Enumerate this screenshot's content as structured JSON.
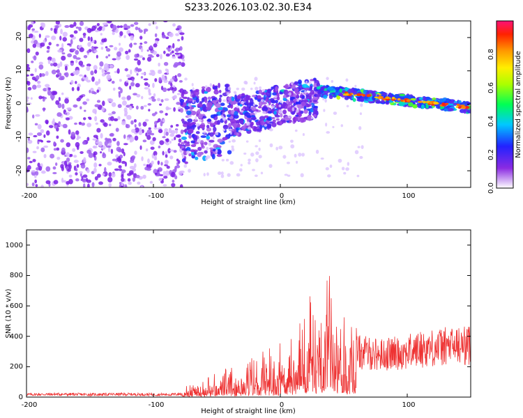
{
  "chart_data": [
    {
      "type": "heatmap",
      "title": "S233.2026.103.02.30.E34",
      "xlabel": "Height of straight line (km)",
      "ylabel": "Frequency (Hz)",
      "xlim": [
        -200,
        150
      ],
      "ylim": [
        -25,
        25
      ],
      "xticks": [
        "-200",
        "-100",
        "0",
        "100"
      ],
      "yticks": [
        "20",
        "10",
        "0",
        "-10",
        "-20"
      ],
      "colorbar": {
        "label": "Normalized spectral amplitude",
        "range": [
          0.0,
          1.0
        ],
        "ticks": [
          "0.0",
          "0.2",
          "0.4",
          "0.6",
          "0.8"
        ]
      },
      "features": [
        {
          "name": "diffuse noise",
          "x_range": [
            -200,
            -78
          ],
          "freq_range": [
            -25,
            25
          ],
          "amplitude": 0.05
        },
        {
          "name": "onset band",
          "x_range": [
            -78,
            30
          ],
          "freq_center": [
            -7,
            2
          ],
          "amplitude": 0.3
        },
        {
          "name": "strong tone",
          "x_range": [
            30,
            150
          ],
          "freq_center": [
            4,
            -1
          ],
          "amplitude": 0.9
        }
      ]
    },
    {
      "type": "line",
      "xlabel": "Height of straight line (km)",
      "ylabel": "SNR (10 * v/v)",
      "xlim": [
        -200,
        150
      ],
      "ylim": [
        0,
        1100
      ],
      "xticks": [
        "-200",
        "-100",
        "0",
        "100"
      ],
      "yticks": [
        "0",
        "200",
        "400",
        "600",
        "800",
        "1000"
      ],
      "series": [
        {
          "name": "SNR",
          "color": "#ee3333",
          "x": [
            -200,
            -175,
            -150,
            -125,
            -100,
            -85,
            -78,
            -70,
            -60,
            -50,
            -40,
            -30,
            -20,
            -10,
            0,
            10,
            20,
            25,
            30,
            35,
            40,
            45,
            50,
            60,
            70,
            80,
            90,
            100,
            110,
            120,
            130,
            140,
            150
          ],
          "values": [
            20,
            22,
            20,
            22,
            20,
            20,
            25,
            60,
            80,
            95,
            110,
            130,
            160,
            190,
            220,
            250,
            330,
            500,
            420,
            650,
            700,
            400,
            350,
            330,
            320,
            310,
            320,
            330,
            350,
            360,
            370,
            375,
            380
          ]
        }
      ]
    }
  ]
}
